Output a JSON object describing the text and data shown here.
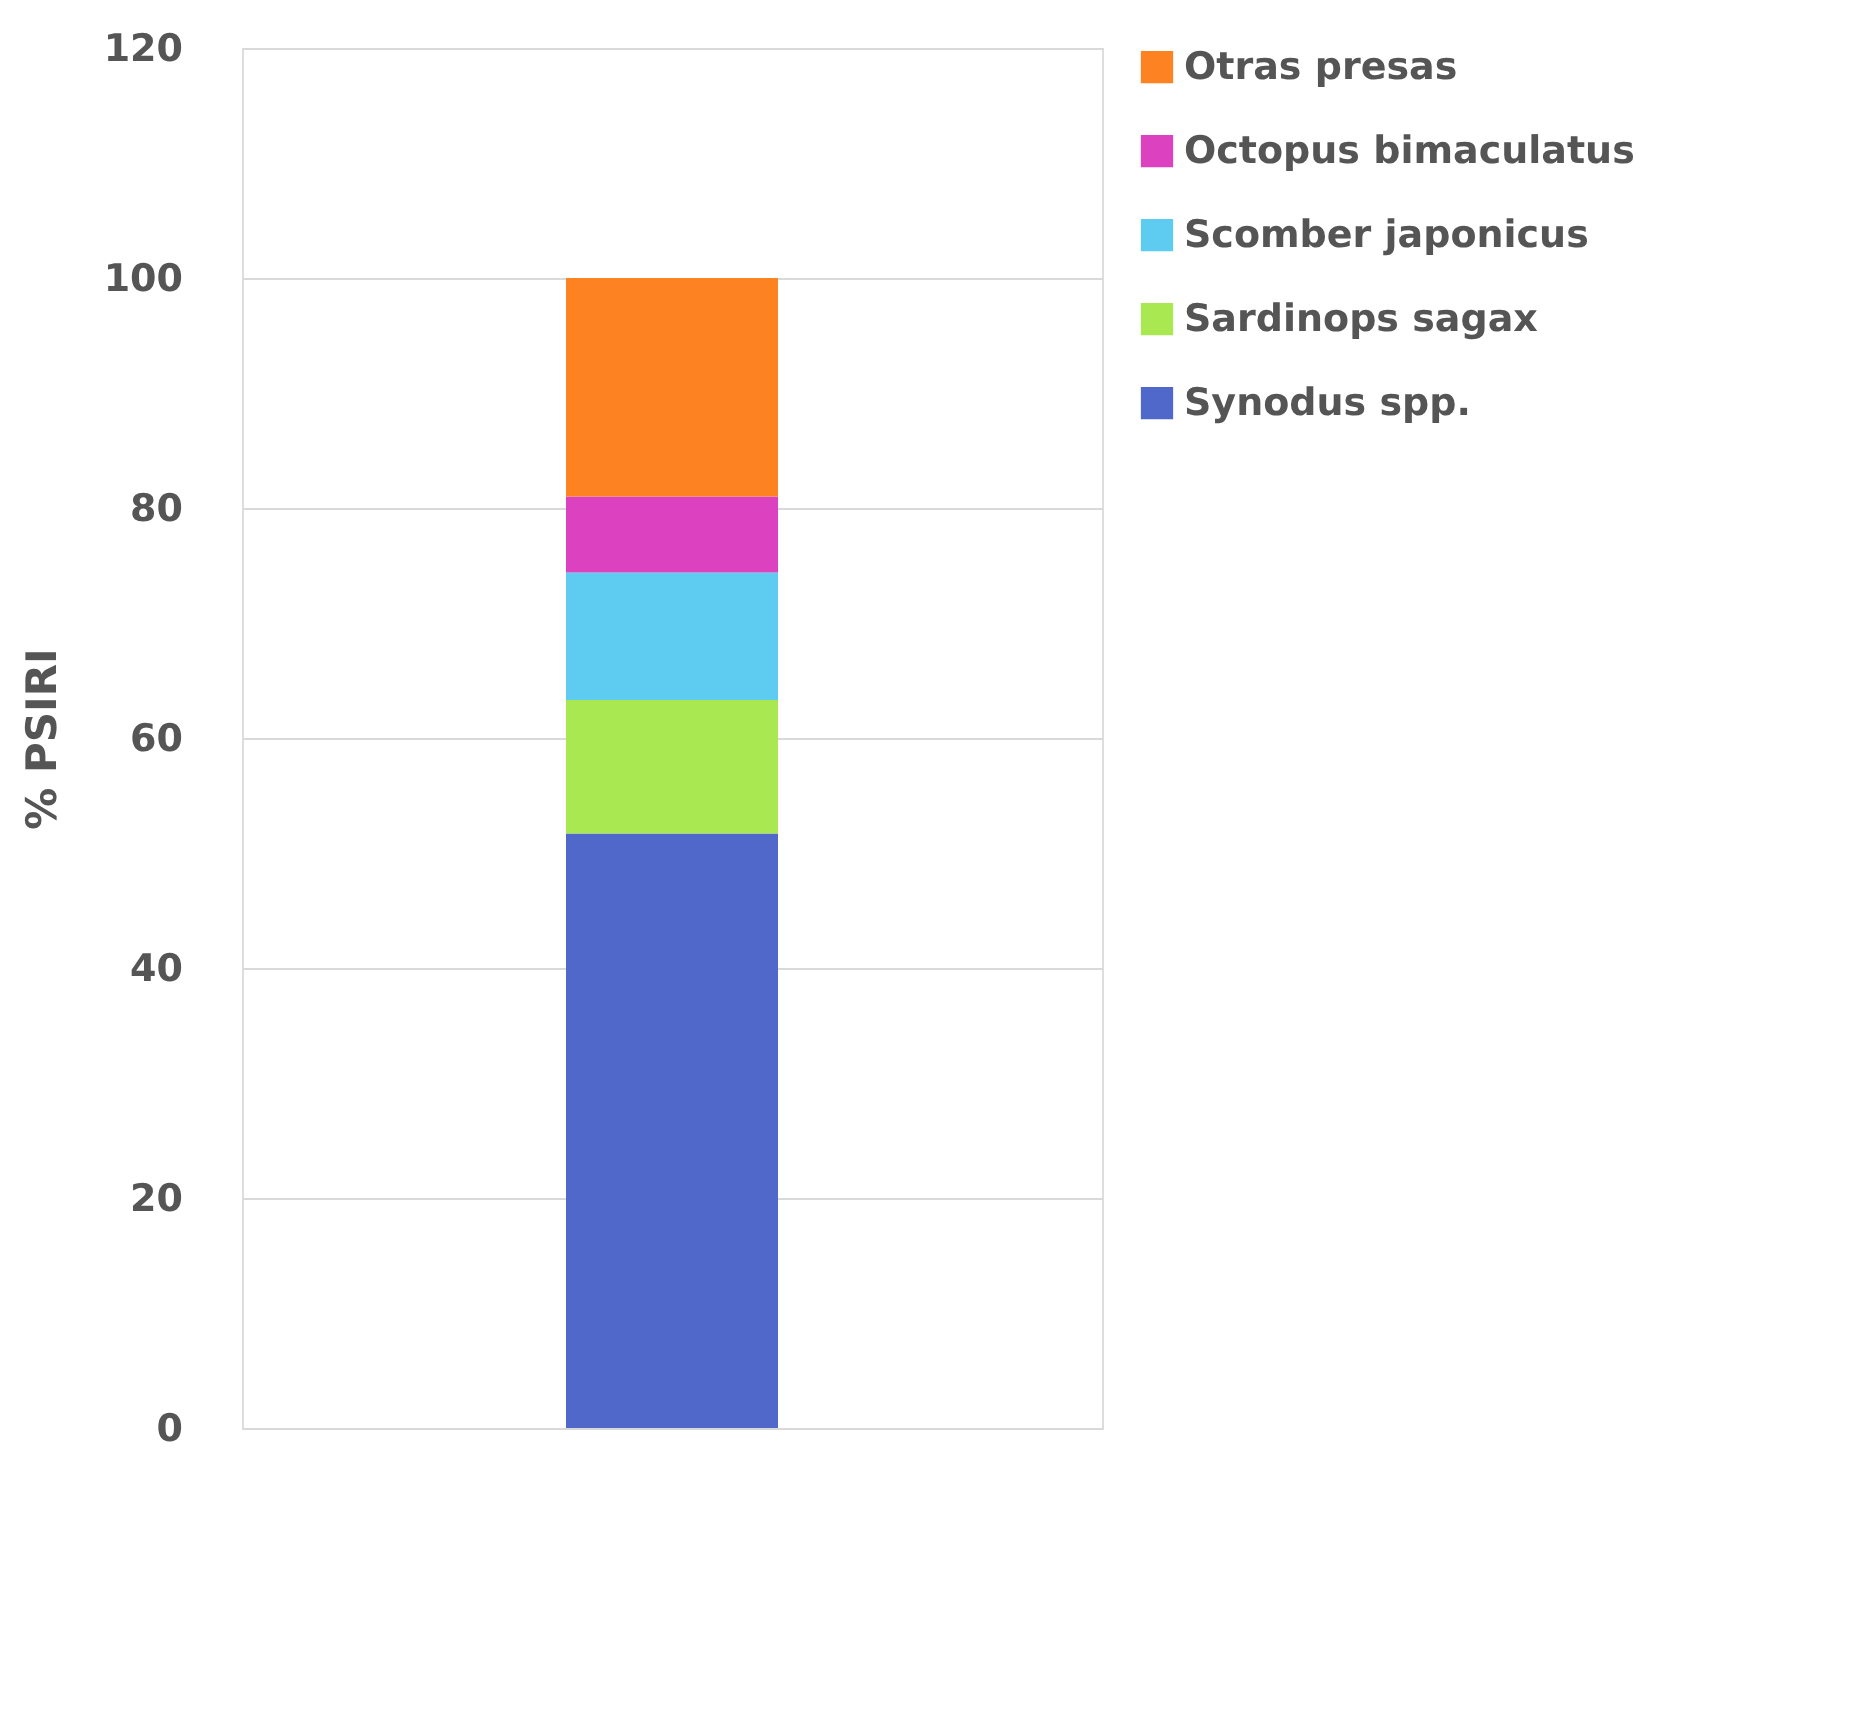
{
  "chart_data": {
    "type": "bar",
    "stacked": true,
    "ylabel": "% PSIRI",
    "categories": [
      null
    ],
    "series": [
      {
        "name": "Synodus spp.",
        "color": "#4f68c9",
        "values": [
          51.7
        ]
      },
      {
        "name": "Sardinops sagax",
        "color": "#a9e851",
        "values": [
          11.6
        ]
      },
      {
        "name": "Scomber japonicus",
        "color": "#5ecbf0",
        "values": [
          11.1
        ]
      },
      {
        "name": "Octopus bimaculatus",
        "color": "#dc42bf",
        "values": [
          6.6
        ]
      },
      {
        "name": "Otras presas",
        "color": "#fd8221",
        "values": [
          19.0
        ]
      }
    ],
    "ylim": [
      0,
      120
    ],
    "yticks": [
      0,
      20,
      40,
      60,
      80,
      100,
      120
    ],
    "grid": "y",
    "legend": "right",
    "tick_labels": "y"
  }
}
